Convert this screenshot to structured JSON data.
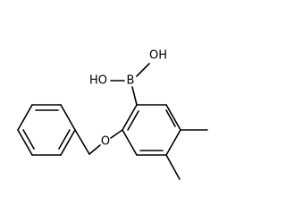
{
  "atoms": [
    {
      "label": "OH"
    },
    {
      "label": "HO"
    },
    {
      "label": "B"
    },
    {
      "label": "O"
    }
  ]
}
